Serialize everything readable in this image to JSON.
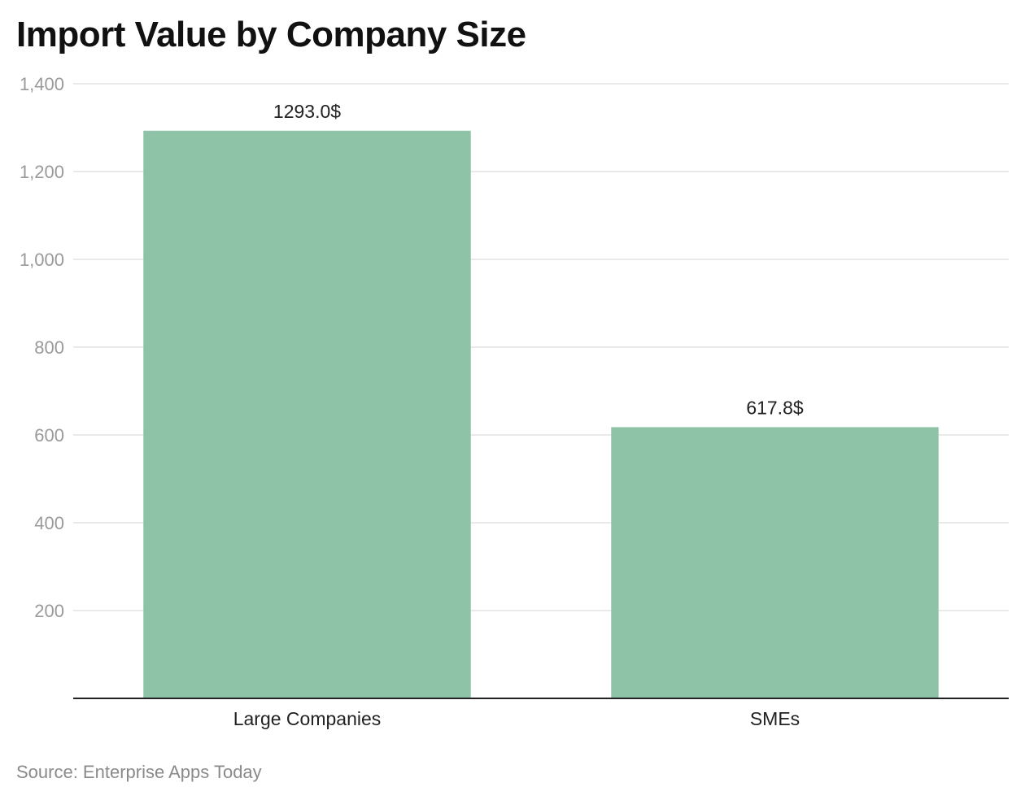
{
  "chart_data": {
    "type": "bar",
    "title": "Import Value by Company Size",
    "categories": [
      "Large Companies",
      "SMEs"
    ],
    "values": [
      1293.0,
      617.8
    ],
    "data_labels": [
      "1293.0$",
      "617.8$"
    ],
    "y_ticks": [
      200,
      400,
      600,
      800,
      1000,
      1200,
      1400
    ],
    "y_tick_labels": [
      "200",
      "400",
      "600",
      "800",
      "1,000",
      "1,200",
      "1,400"
    ],
    "ylim": [
      0,
      1400
    ],
    "xlabel": "",
    "ylabel": "",
    "grid": true,
    "legend": "none",
    "bar_color": "#8fc3a8",
    "source": "Source: Enterprise Apps Today"
  }
}
